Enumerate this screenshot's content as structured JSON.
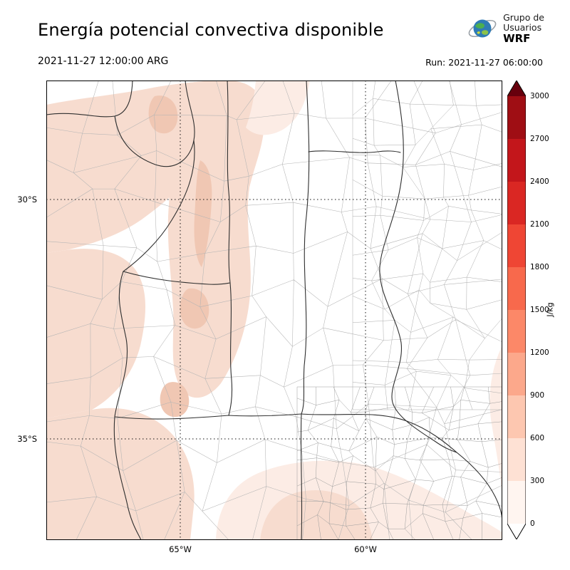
{
  "header": {
    "title": "Energía potencial convectiva disponible",
    "logo": {
      "line1": "Grupo de",
      "line2": "Usuarios",
      "line3": "WRF"
    }
  },
  "subheader": {
    "valid_time": "2021-11-27 12:00:00 ARG",
    "run_time": "Run: 2021-11-27 06:00:00"
  },
  "map": {
    "lat_ticks": [
      "30°S",
      "35°S"
    ],
    "lon_ticks": [
      "65°W",
      "60°W"
    ],
    "shade_colors": {
      "l1": "#fcece5",
      "l2": "#f7dccf",
      "l3": "#f0c7b3"
    }
  },
  "colorbar": {
    "label": "J/kg",
    "ticks": [
      "0",
      "300",
      "600",
      "900",
      "1200",
      "1500",
      "1800",
      "2100",
      "2400",
      "2700",
      "3000"
    ],
    "band_colors": [
      "#fff5f0",
      "#fee1d4",
      "#fdc7b0",
      "#fca88b",
      "#fc8868",
      "#f8694c",
      "#ef4634",
      "#da2723",
      "#c3161b",
      "#9f0e14"
    ],
    "over_color": "#67000d",
    "under_color": "#ffffff"
  }
}
